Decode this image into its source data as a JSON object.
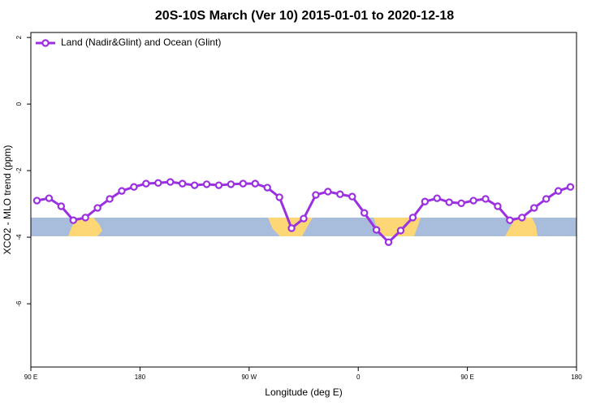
{
  "chart_data": {
    "type": "line",
    "title": "20S-10S March (Ver 10)   2015-01-01 to 2020-12-18",
    "x_label": "Longitude (deg E)",
    "y_label": "XCO2 - MLO trend (ppm)",
    "legend_position": "top-left",
    "xlim": [
      90,
      540
    ],
    "ylim": [
      -7.9,
      2.15
    ],
    "xticks": [
      {
        "value": 90,
        "label": "90 E"
      },
      180,
      {
        "value": 270,
        "label": "90 W"
      },
      {
        "value": 360,
        "label": "0"
      },
      {
        "value": 450,
        "label": "90 E"
      },
      {
        "value": 540,
        "label": "180"
      }
    ],
    "yticks": [
      2,
      0,
      -2,
      -4,
      -6
    ],
    "x": [
      95,
      105,
      115,
      125,
      135,
      145,
      155,
      165,
      175,
      185,
      195,
      205,
      215,
      225,
      235,
      245,
      255,
      265,
      275,
      285,
      295,
      305,
      315,
      325,
      335,
      345,
      355,
      365,
      375,
      385,
      395,
      405,
      415,
      425,
      435,
      445,
      455,
      465,
      475,
      485,
      495,
      505,
      515,
      525,
      535
    ],
    "series": [
      {
        "name": "Land (Nadir&Glint) and Ocean (Glint)",
        "color": "#9b30e0",
        "values": [
          -2.9,
          -2.83,
          -3.07,
          -3.49,
          -3.41,
          -3.12,
          -2.85,
          -2.61,
          -2.49,
          -2.39,
          -2.37,
          -2.34,
          -2.39,
          -2.44,
          -2.41,
          -2.44,
          -2.41,
          -2.39,
          -2.39,
          -2.51,
          -2.8,
          -3.73,
          -3.44,
          -2.73,
          -2.63,
          -2.71,
          -2.78,
          -3.27,
          -3.78,
          -4.15,
          -3.8,
          -3.41,
          -2.93,
          -2.83,
          -2.95,
          -2.98,
          -2.9,
          -2.85,
          -3.07,
          -3.49,
          -3.41,
          -3.12,
          -2.85,
          -2.61,
          -2.49
        ]
      }
    ]
  }
}
